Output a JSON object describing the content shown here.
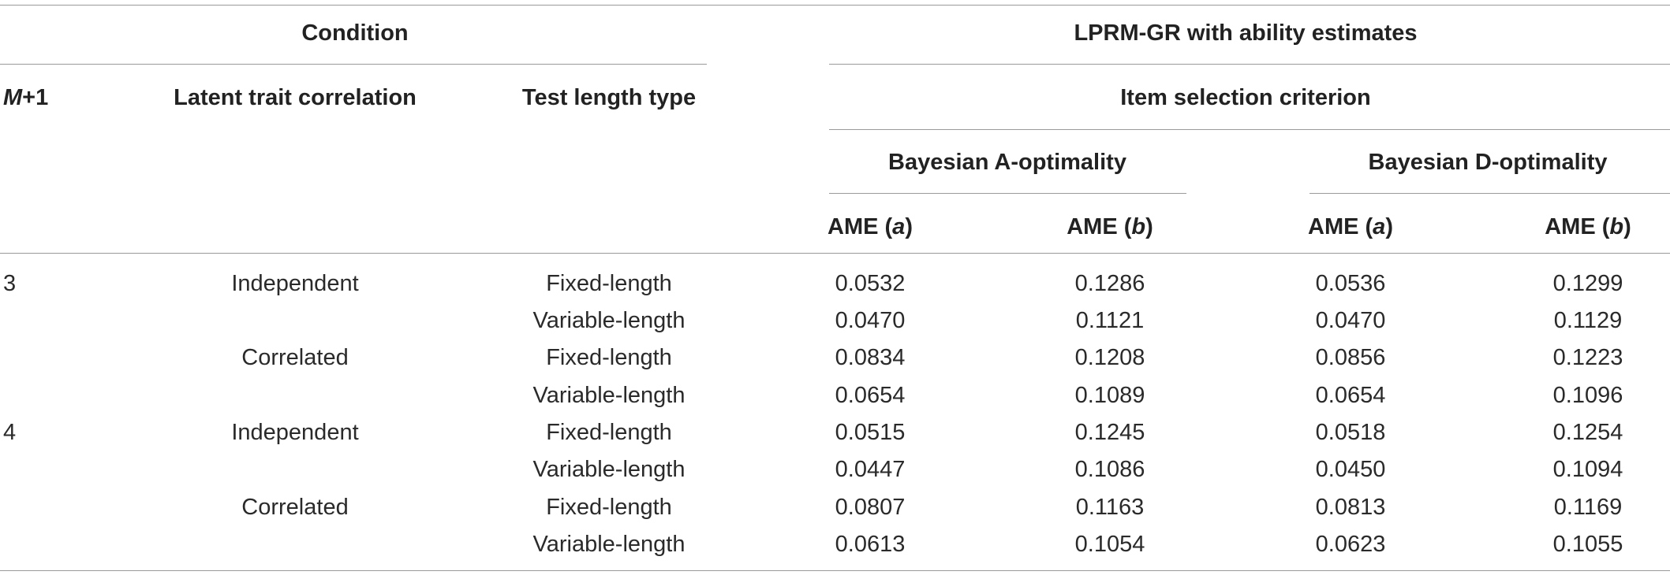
{
  "table": {
    "header": {
      "condition": "Condition",
      "lprm": "LPRM-GR with ability estimates",
      "m1_italic": "M",
      "m1_rest": "+1",
      "latent": "Latent trait correlation",
      "testlen": "Test length type",
      "item_selection": "Item selection criterion",
      "bayes_a": "Bayesian A-optimality",
      "bayes_d": "Bayesian D-optimality",
      "ame_prefix": "AME (",
      "ame_suffix": ")",
      "ame_a_param": "a",
      "ame_b_param": "b"
    },
    "rows": [
      {
        "m1": "3",
        "corr": "Independent",
        "len": "Fixed-length",
        "a_a": "0.0532",
        "a_b": "0.1286",
        "d_a": "0.0536",
        "d_b": "0.1299"
      },
      {
        "m1": "",
        "corr": "",
        "len": "Variable-length",
        "a_a": "0.0470",
        "a_b": "0.1121",
        "d_a": "0.0470",
        "d_b": "0.1129"
      },
      {
        "m1": "",
        "corr": "Correlated",
        "len": "Fixed-length",
        "a_a": "0.0834",
        "a_b": "0.1208",
        "d_a": "0.0856",
        "d_b": "0.1223"
      },
      {
        "m1": "",
        "corr": "",
        "len": "Variable-length",
        "a_a": "0.0654",
        "a_b": "0.1089",
        "d_a": "0.0654",
        "d_b": "0.1096"
      },
      {
        "m1": "4",
        "corr": "Independent",
        "len": "Fixed-length",
        "a_a": "0.0515",
        "a_b": "0.1245",
        "d_a": "0.0518",
        "d_b": "0.1254"
      },
      {
        "m1": "",
        "corr": "",
        "len": "Variable-length",
        "a_a": "0.0447",
        "a_b": "0.1086",
        "d_a": "0.0450",
        "d_b": "0.1094"
      },
      {
        "m1": "",
        "corr": "Correlated",
        "len": "Fixed-length",
        "a_a": "0.0807",
        "a_b": "0.1163",
        "d_a": "0.0813",
        "d_b": "0.1169"
      },
      {
        "m1": "",
        "corr": "",
        "len": "Variable-length",
        "a_a": "0.0613",
        "a_b": "0.1054",
        "d_a": "0.0623",
        "d_b": "0.1055"
      }
    ]
  }
}
